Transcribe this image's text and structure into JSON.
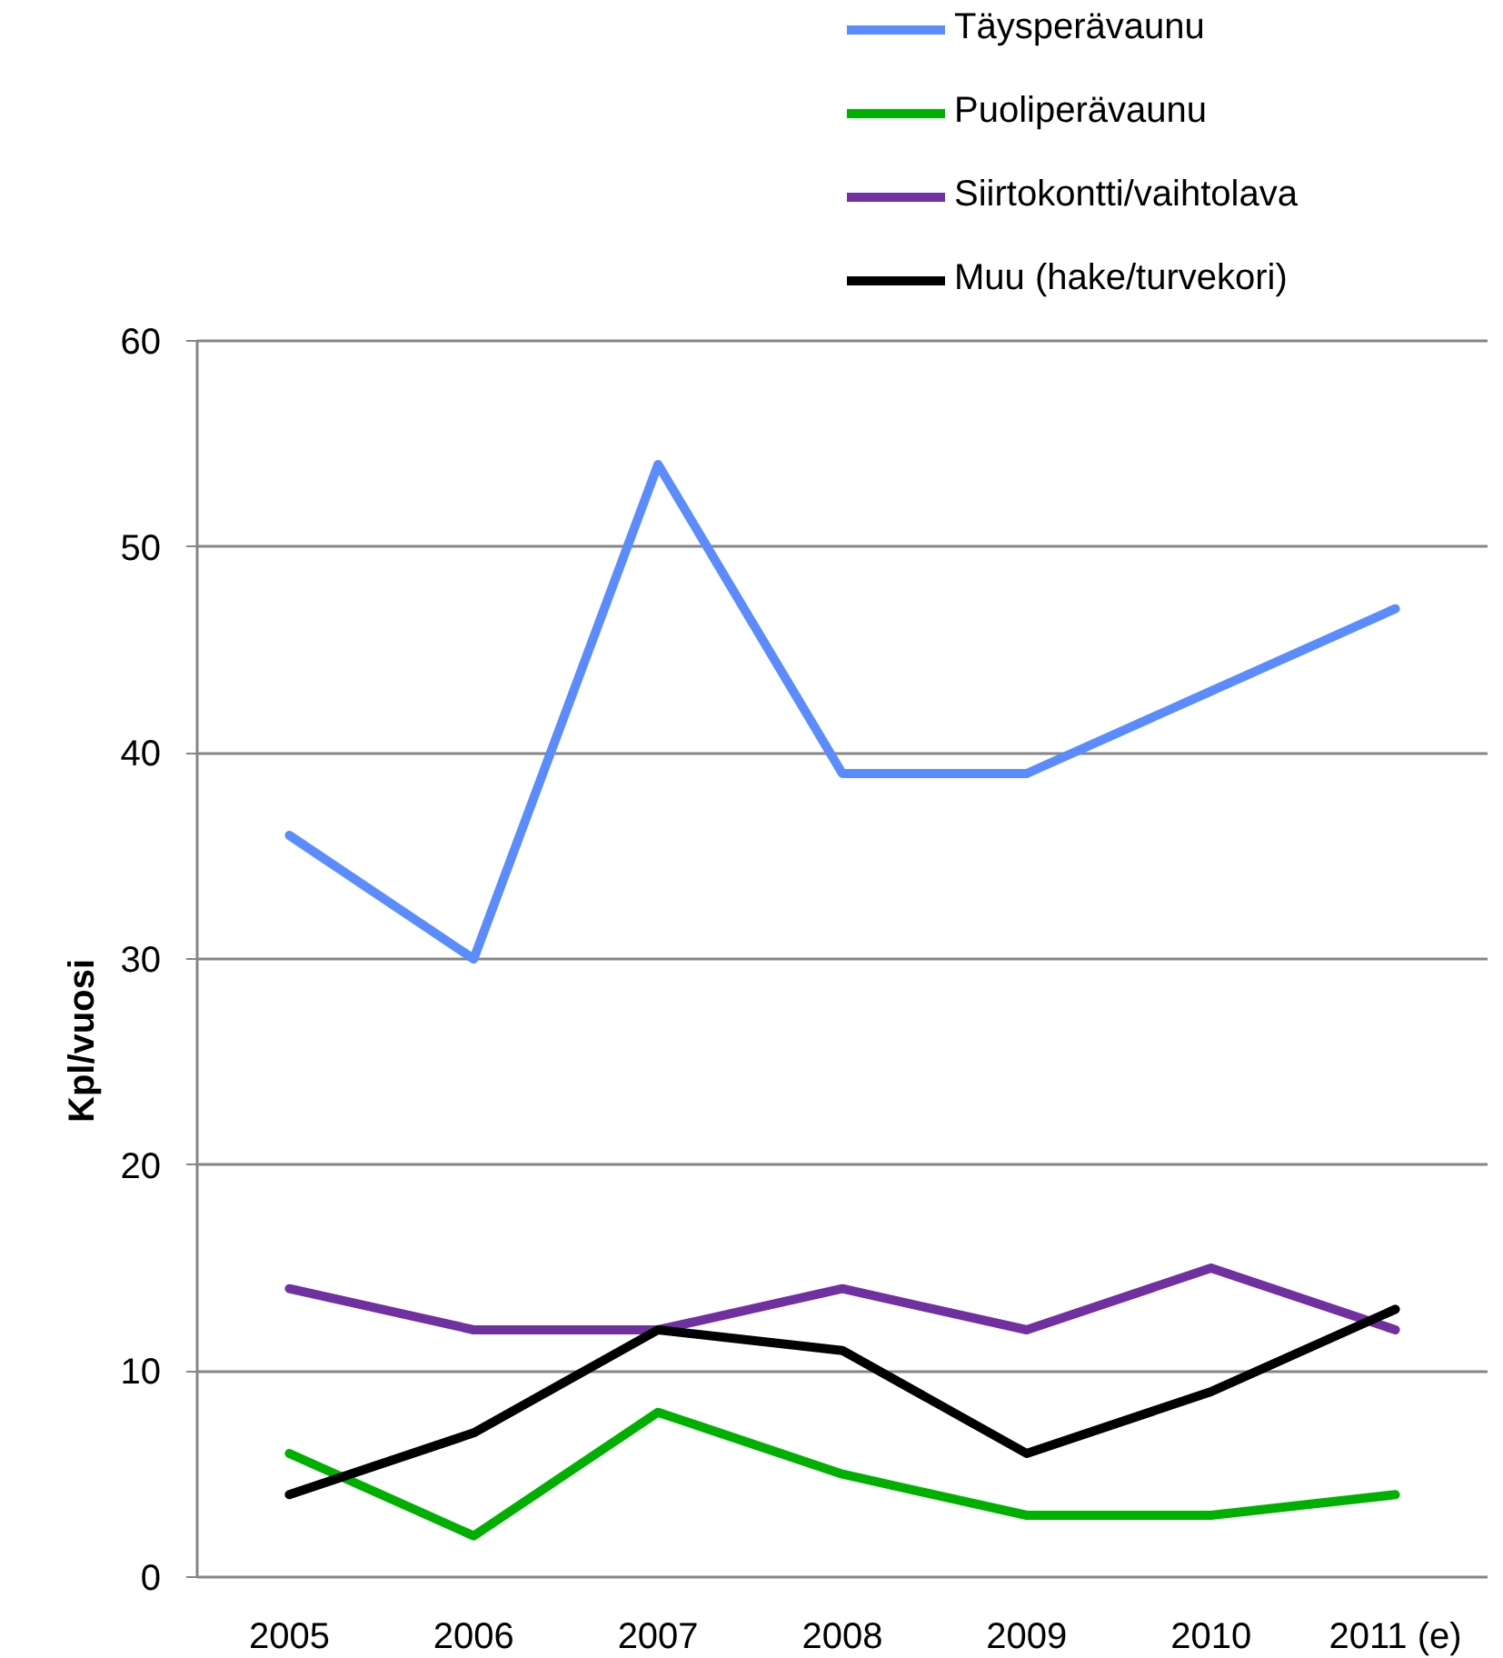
{
  "chart_data": {
    "type": "line",
    "ylabel": "Kpl/vuosi",
    "categories": [
      "2005",
      "2006",
      "2007",
      "2008",
      "2009",
      "2010",
      "2011 (e)"
    ],
    "ylim": [
      0,
      60
    ],
    "yticks": [
      0,
      10,
      20,
      30,
      40,
      50,
      60
    ],
    "grid": "y",
    "legend": "top right",
    "line_style": "solid",
    "series": [
      {
        "name": "Täysperävaunu",
        "color": "#5b8cff",
        "values": [
          36,
          30,
          54,
          39,
          39,
          43,
          47
        ]
      },
      {
        "name": "Puoliperävaunu",
        "color": "#00b000",
        "values": [
          6,
          2,
          8,
          5,
          3,
          3,
          4
        ]
      },
      {
        "name": "Siirtokontti/vaihtolava",
        "color": "#7030a0",
        "values": [
          14,
          12,
          12,
          14,
          12,
          15,
          12
        ]
      },
      {
        "name": "Muu (hake/turvekori)",
        "color": "#000000",
        "values": [
          4,
          7,
          12,
          11,
          6,
          9,
          13
        ]
      }
    ]
  }
}
